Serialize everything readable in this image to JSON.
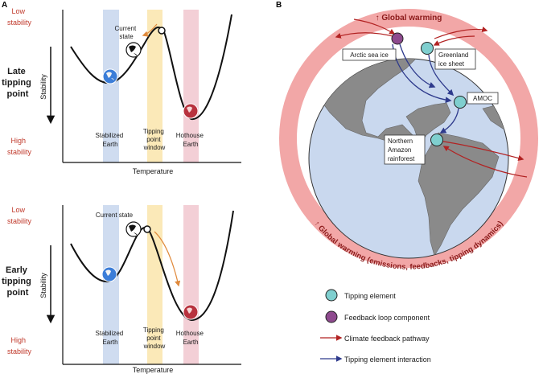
{
  "panel_a": {
    "letter": "A",
    "top": {
      "low_stability": [
        "Low",
        "stability"
      ],
      "high_stability": [
        "High",
        "stability"
      ],
      "side_label": [
        "Late",
        "tipping",
        "point"
      ],
      "stability_axis": "Stability",
      "current_state": [
        "Current",
        "state"
      ],
      "stabilized_earth": [
        "Stabilized",
        "Earth"
      ],
      "tipping_window": [
        "Tipping",
        "point",
        "window"
      ],
      "hothouse_earth": [
        "Hothouse",
        "Earth"
      ],
      "x_axis": "Temperature"
    },
    "bottom": {
      "low_stability": [
        "Low",
        "stability"
      ],
      "high_stability": [
        "High",
        "stability"
      ],
      "side_label": [
        "Early",
        "tipping",
        "point"
      ],
      "stability_axis": "Stability",
      "current_state": "Current state",
      "stabilized_earth": [
        "Stabilized",
        "Earth"
      ],
      "tipping_window": [
        "Tipping",
        "point",
        "window"
      ],
      "hothouse_earth": [
        "Hothouse",
        "Earth"
      ],
      "x_axis": "Temperature"
    }
  },
  "panel_b": {
    "letter": "B",
    "ring_top": "Global warming",
    "ring_bottom": "Global warming (emissions, feedbacks, tipping dynamics)",
    "nodes": {
      "arctic": "Arctic sea ice",
      "greenland": [
        "Greenland",
        "ice sheet"
      ],
      "amoc": "AMOC",
      "amazon": [
        "Northern",
        "Amazon",
        "rainforest"
      ]
    },
    "legend": [
      {
        "key": "tipping",
        "label": "Tipping element",
        "color": "#7fcfcf"
      },
      {
        "key": "feedback",
        "label": "Feedback loop component",
        "color": "#8e4a8e"
      },
      {
        "key": "climate",
        "label": "Climate feedback pathway",
        "color": "#b22222"
      },
      {
        "key": "interaction",
        "label": "Tipping element interaction",
        "color": "#2e3a8c"
      }
    ]
  },
  "colors": {
    "red_text": "#c0392b",
    "ring": "#f2a7a7",
    "ocean": "#c9d8ee",
    "land": "#8a8a8a",
    "blue_band": "#cfdcf0",
    "yellow_band": "#fbe9b8",
    "pink_band": "#f3cfd6"
  }
}
